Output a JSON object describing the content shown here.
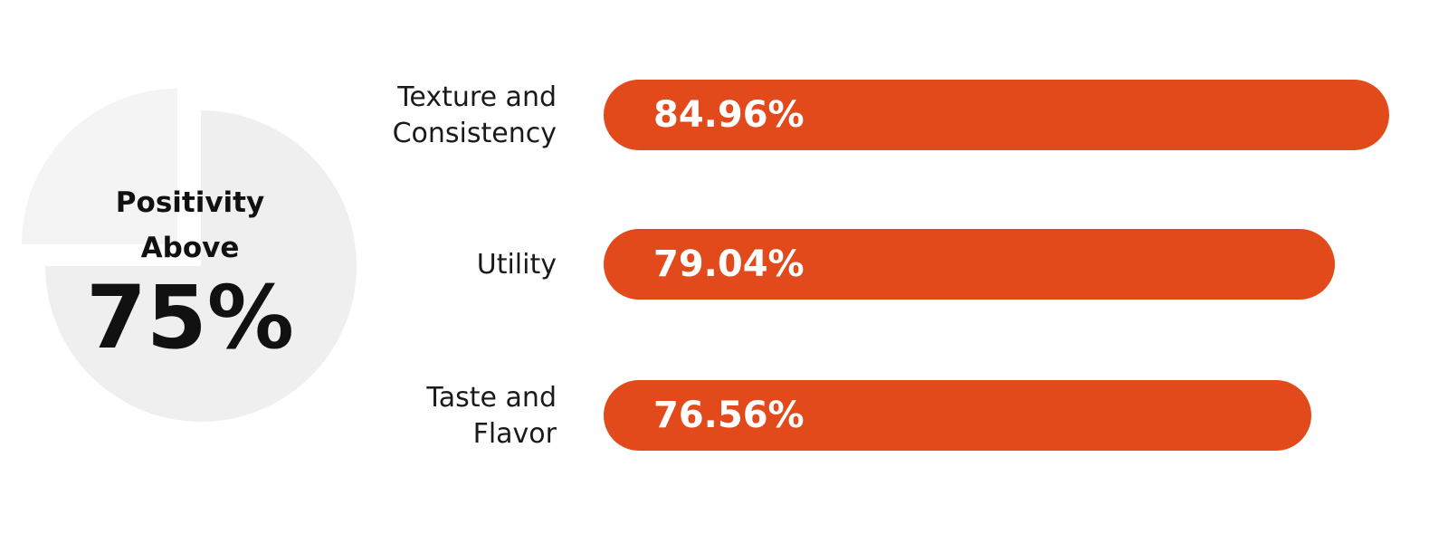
{
  "colors": {
    "bar": "#e24a1c",
    "pie_main": "#efefef",
    "pie_slice": "#f4f4f4",
    "text": "#111111"
  },
  "headline": {
    "line1": "Positivity",
    "line2": "Above",
    "value": "75%"
  },
  "chart_data": {
    "type": "bar",
    "orientation": "horizontal",
    "categories": [
      "Texture and\nConsistency",
      "Utility",
      "Taste and\nFlavor"
    ],
    "values": [
      84.96,
      79.04,
      76.56
    ],
    "value_labels": [
      "84.96%",
      "79.04%",
      "76.56%"
    ],
    "title": "",
    "xlabel": "",
    "ylabel": "",
    "grid": false
  },
  "pie": {
    "type": "pie",
    "highlight_value": 75
  }
}
